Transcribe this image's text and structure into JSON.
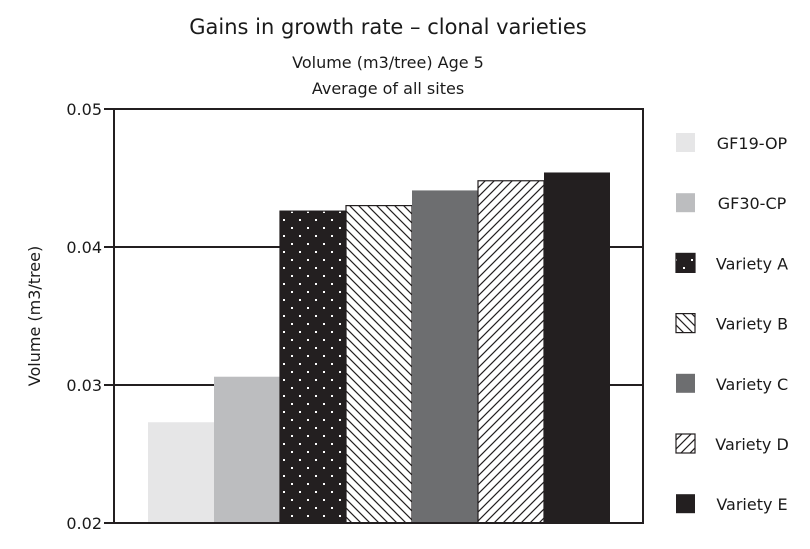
{
  "chart_data": {
    "type": "bar",
    "title": "Gains in growth rate – clonal varieties",
    "subtitle_lines": [
      "Volume (m3/tree) Age 5",
      "Average of all sites"
    ],
    "xlabel": "",
    "ylabel": "Volume (m3/tree)",
    "ylim": [
      0.02,
      0.05
    ],
    "yticks": [
      0.02,
      0.03,
      0.04,
      0.05
    ],
    "ytick_labels": [
      "0.02",
      "0.03",
      "0.04",
      "0.05"
    ],
    "grid": "horizontal",
    "legend_position": "right",
    "series": [
      {
        "name": "GF19-OP",
        "value": 0.0273,
        "color": "#e6e6e7",
        "pattern": "solid"
      },
      {
        "name": "GF30-CP",
        "value": 0.0306,
        "color": "#bcbdbf",
        "pattern": "solid"
      },
      {
        "name": "Variety A",
        "value": 0.0426,
        "color": "#231f20",
        "pattern": "dots"
      },
      {
        "name": "Variety B",
        "value": 0.043,
        "color": "#231f20",
        "pattern": "diagonal-back"
      },
      {
        "name": "Variety C",
        "value": 0.0441,
        "color": "#6d6e70",
        "pattern": "solid"
      },
      {
        "name": "Variety D",
        "value": 0.0448,
        "color": "#231f20",
        "pattern": "diagonal-forward"
      },
      {
        "name": "Variety E",
        "value": 0.0454,
        "color": "#231f20",
        "pattern": "solid"
      }
    ]
  }
}
